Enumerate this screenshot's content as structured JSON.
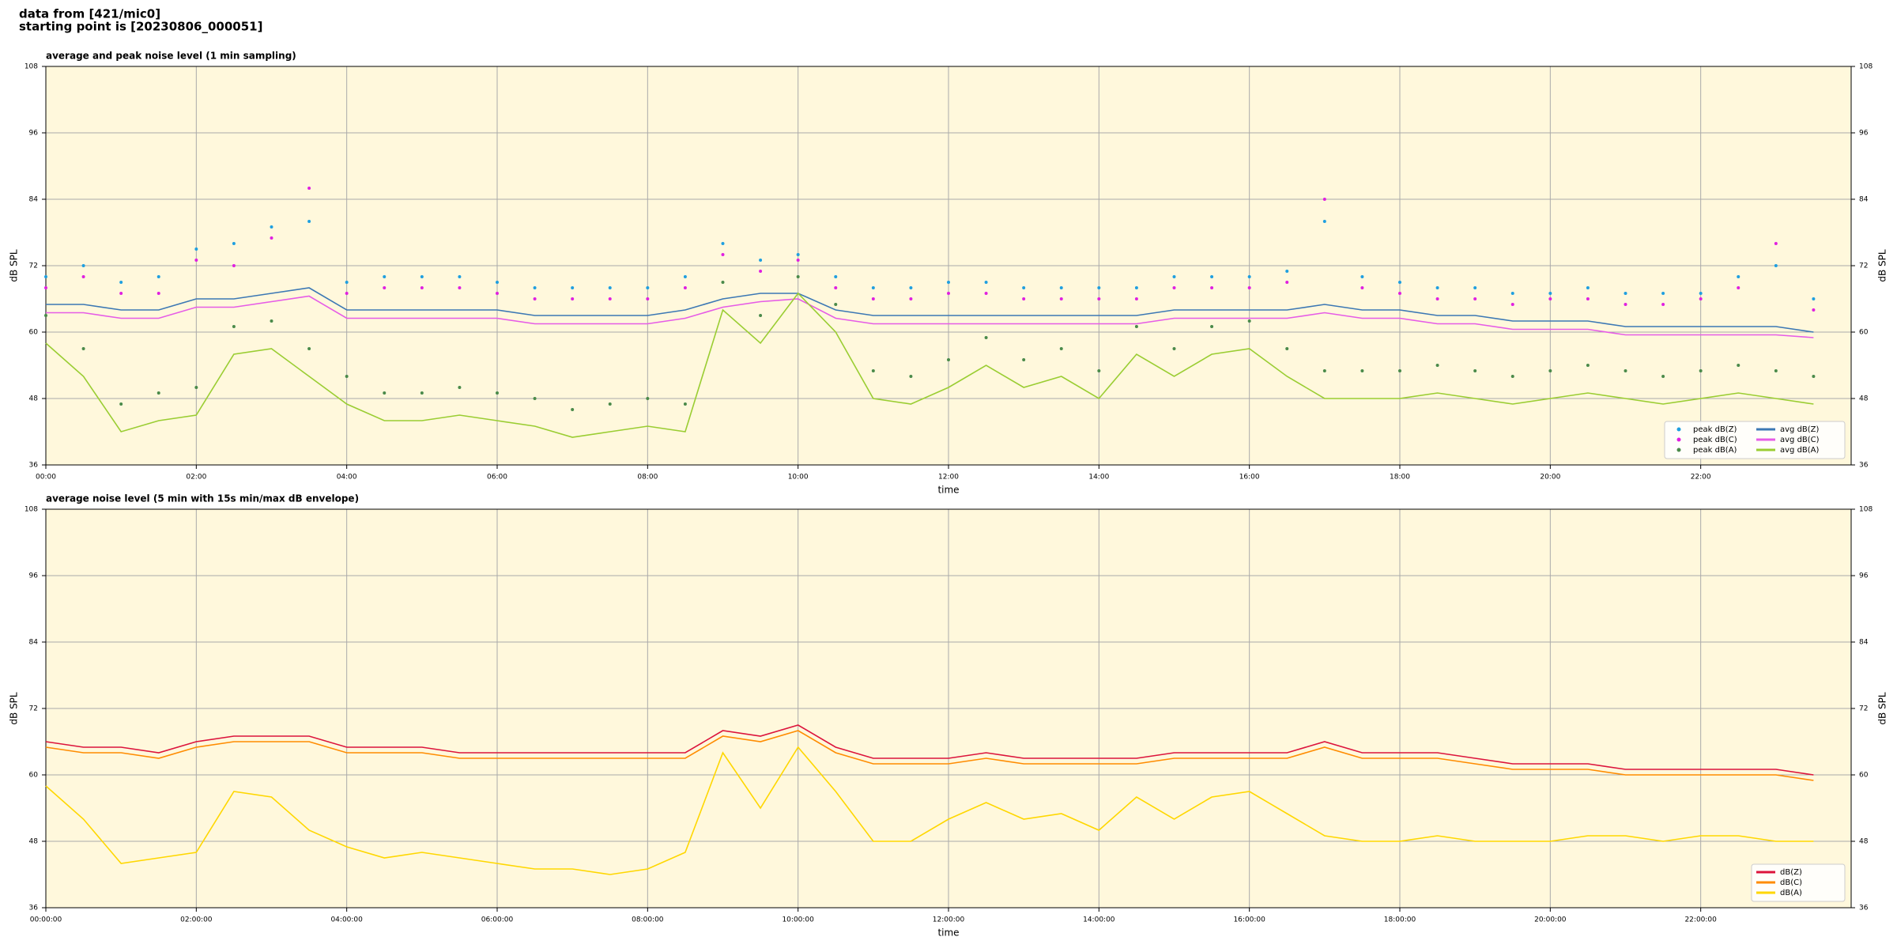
{
  "header": {
    "lines": [
      "data from [421/mic0]",
      "starting point is [20230806_000051]"
    ]
  },
  "chart_data": [
    {
      "type": "line",
      "title": "average and peak noise level (1 min sampling)",
      "x_label": "time",
      "y_label": "dB SPL",
      "xlim": [
        0,
        24
      ],
      "ylim": [
        36,
        108
      ],
      "xticks": [
        {
          "value": 0,
          "label": "00:00"
        },
        {
          "value": 2,
          "label": "02:00"
        },
        {
          "value": 4,
          "label": "04:00"
        },
        {
          "value": 6,
          "label": "06:00"
        },
        {
          "value": 8,
          "label": "08:00"
        },
        {
          "value": 10,
          "label": "10:00"
        },
        {
          "value": 12,
          "label": "12:00"
        },
        {
          "value": 14,
          "label": "14:00"
        },
        {
          "value": 16,
          "label": "16:00"
        },
        {
          "value": 18,
          "label": "18:00"
        },
        {
          "value": 20,
          "label": "20:00"
        },
        {
          "value": 22,
          "label": "22:00"
        }
      ],
      "yticks": [
        36,
        48,
        60,
        72,
        84,
        96,
        108
      ],
      "grid": true,
      "legend": "lower right",
      "legend_columns": 2,
      "x": [
        0,
        0.5,
        1,
        1.5,
        2,
        2.5,
        3,
        3.5,
        4,
        4.5,
        5,
        5.5,
        6,
        6.5,
        7,
        7.5,
        8,
        8.5,
        9,
        9.5,
        10,
        10.5,
        11,
        11.5,
        12,
        12.5,
        13,
        13.5,
        14,
        14.5,
        15,
        15.5,
        16,
        16.5,
        17,
        17.5,
        18,
        18.5,
        19,
        19.5,
        20,
        20.5,
        21,
        21.5,
        22,
        22.5,
        23,
        23.5
      ],
      "series": [
        {
          "name": "peak dB(Z)",
          "style": "points",
          "color": "#1f9fe0",
          "values": [
            70,
            72,
            69,
            70,
            75,
            76,
            79,
            80,
            69,
            70,
            70,
            70,
            69,
            68,
            68,
            68,
            68,
            70,
            76,
            73,
            74,
            70,
            68,
            68,
            69,
            69,
            68,
            68,
            68,
            68,
            70,
            70,
            70,
            71,
            80,
            70,
            69,
            68,
            68,
            67,
            67,
            68,
            67,
            67,
            67,
            70,
            72,
            66
          ]
        },
        {
          "name": "peak dB(C)",
          "style": "points",
          "color": "#e020e0",
          "values": [
            68,
            70,
            67,
            67,
            73,
            72,
            77,
            86,
            67,
            68,
            68,
            68,
            67,
            66,
            66,
            66,
            66,
            68,
            74,
            71,
            73,
            68,
            66,
            66,
            67,
            67,
            66,
            66,
            66,
            66,
            68,
            68,
            68,
            69,
            84,
            68,
            67,
            66,
            66,
            65,
            66,
            66,
            65,
            65,
            66,
            68,
            76,
            64
          ]
        },
        {
          "name": "peak dB(A)",
          "style": "points",
          "color": "#4a8a4a",
          "values": [
            63,
            57,
            47,
            49,
            50,
            61,
            62,
            57,
            52,
            49,
            49,
            50,
            49,
            48,
            46,
            47,
            48,
            47,
            69,
            63,
            70,
            65,
            53,
            52,
            55,
            59,
            55,
            57,
            53,
            61,
            57,
            61,
            62,
            57,
            53,
            53,
            53,
            54,
            53,
            52,
            53,
            54,
            53,
            52,
            53,
            54,
            53,
            52
          ]
        },
        {
          "name": "avg dB(Z)",
          "style": "line",
          "color": "#3c78b4",
          "values": [
            65,
            65,
            64,
            64,
            66,
            66,
            67,
            68,
            64,
            64,
            64,
            64,
            64,
            63,
            63,
            63,
            63,
            64,
            66,
            67,
            67,
            64,
            63,
            63,
            63,
            63,
            63,
            63,
            63,
            63,
            64,
            64,
            64,
            64,
            65,
            64,
            64,
            63,
            63,
            62,
            62,
            62,
            61,
            61,
            61,
            61,
            61,
            60
          ]
        },
        {
          "name": "avg dB(C)",
          "style": "line",
          "color": "#e65ce6",
          "values": [
            63.5,
            63.5,
            62.5,
            62.5,
            64.5,
            64.5,
            65.5,
            66.5,
            62.5,
            62.5,
            62.5,
            62.5,
            62.5,
            61.5,
            61.5,
            61.5,
            61.5,
            62.5,
            64.5,
            65.5,
            66,
            62.5,
            61.5,
            61.5,
            61.5,
            61.5,
            61.5,
            61.5,
            61.5,
            61.5,
            62.5,
            62.5,
            62.5,
            62.5,
            63.5,
            62.5,
            62.5,
            61.5,
            61.5,
            60.5,
            60.5,
            60.5,
            59.5,
            59.5,
            59.5,
            59.5,
            59.5,
            59
          ]
        },
        {
          "name": "avg dB(A)",
          "style": "line",
          "color": "#9acd32",
          "values": [
            58,
            52,
            42,
            44,
            45,
            56,
            57,
            52,
            47,
            44,
            44,
            45,
            44,
            43,
            41,
            42,
            43,
            42,
            64,
            58,
            67,
            60,
            48,
            47,
            50,
            54,
            50,
            52,
            48,
            56,
            52,
            56,
            57,
            52,
            48,
            48,
            48,
            49,
            48,
            47,
            48,
            49,
            48,
            47,
            48,
            49,
            48,
            47
          ]
        }
      ]
    },
    {
      "type": "line",
      "title": "average noise level (5 min with 15s min/max dB envelope)",
      "x_label": "time",
      "y_label": "dB SPL",
      "xlim": [
        0,
        24
      ],
      "ylim": [
        36,
        108
      ],
      "xticks": [
        {
          "value": 0,
          "label": "00:00:00"
        },
        {
          "value": 2,
          "label": "02:00:00"
        },
        {
          "value": 4,
          "label": "04:00:00"
        },
        {
          "value": 6,
          "label": "06:00:00"
        },
        {
          "value": 8,
          "label": "08:00:00"
        },
        {
          "value": 10,
          "label": "10:00:00"
        },
        {
          "value": 12,
          "label": "12:00:00"
        },
        {
          "value": 14,
          "label": "14:00:00"
        },
        {
          "value": 16,
          "label": "16:00:00"
        },
        {
          "value": 18,
          "label": "18:00:00"
        },
        {
          "value": 20,
          "label": "20:00:00"
        },
        {
          "value": 22,
          "label": "22:00:00"
        }
      ],
      "yticks": [
        36,
        48,
        60,
        72,
        84,
        96,
        108
      ],
      "grid": true,
      "legend": "lower right",
      "legend_columns": 1,
      "x": [
        0,
        0.5,
        1,
        1.5,
        2,
        2.5,
        3,
        3.5,
        4,
        4.5,
        5,
        5.5,
        6,
        6.5,
        7,
        7.5,
        8,
        8.5,
        9,
        9.5,
        10,
        10.5,
        11,
        11.5,
        12,
        12.5,
        13,
        13.5,
        14,
        14.5,
        15,
        15.5,
        16,
        16.5,
        17,
        17.5,
        18,
        18.5,
        19,
        19.5,
        20,
        20.5,
        21,
        21.5,
        22,
        22.5,
        23,
        23.5
      ],
      "series": [
        {
          "name": "dB(Z)",
          "style": "line",
          "color": "#dc143c",
          "values": [
            66,
            65,
            65,
            64,
            66,
            67,
            67,
            67,
            65,
            65,
            65,
            64,
            64,
            64,
            64,
            64,
            64,
            64,
            68,
            67,
            69,
            65,
            63,
            63,
            63,
            64,
            63,
            63,
            63,
            63,
            64,
            64,
            64,
            64,
            66,
            64,
            64,
            64,
            63,
            62,
            62,
            62,
            61,
            61,
            61,
            61,
            61,
            60
          ]
        },
        {
          "name": "dB(C)",
          "style": "line",
          "color": "#ff8c00",
          "values": [
            65,
            64,
            64,
            63,
            65,
            66,
            66,
            66,
            64,
            64,
            64,
            63,
            63,
            63,
            63,
            63,
            63,
            63,
            67,
            66,
            68,
            64,
            62,
            62,
            62,
            63,
            62,
            62,
            62,
            62,
            63,
            63,
            63,
            63,
            65,
            63,
            63,
            63,
            62,
            61,
            61,
            61,
            60,
            60,
            60,
            60,
            60,
            59
          ]
        },
        {
          "name": "dB(A)",
          "style": "line",
          "color": "#ffd700",
          "values": [
            58,
            52,
            44,
            45,
            46,
            57,
            56,
            50,
            47,
            45,
            46,
            45,
            44,
            43,
            43,
            42,
            43,
            46,
            64,
            54,
            65,
            57,
            48,
            48,
            52,
            55,
            52,
            53,
            50,
            56,
            52,
            56,
            57,
            53,
            49,
            48,
            48,
            49,
            48,
            48,
            48,
            49,
            49,
            48,
            49,
            49,
            48,
            48
          ]
        }
      ]
    }
  ]
}
